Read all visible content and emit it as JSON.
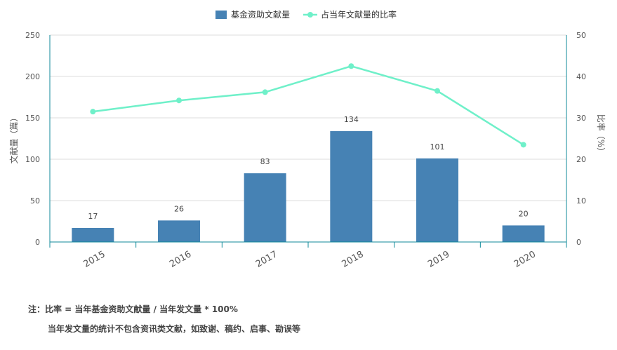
{
  "chart_data": {
    "type": "bar",
    "categories": [
      "2015",
      "2016",
      "2017",
      "2018",
      "2019",
      "2020"
    ],
    "series": [
      {
        "name": "基金资助文献量",
        "type": "bar",
        "axis": "left",
        "color": "#4682b4",
        "values": [
          17,
          26,
          83,
          134,
          101,
          20
        ]
      },
      {
        "name": "占当年文献量的比率",
        "type": "line",
        "axis": "right",
        "color": "#6ff0c9",
        "values": [
          31.5,
          34.2,
          36.2,
          42.5,
          36.5,
          23.5
        ]
      }
    ],
    "ylabel": "文献量（篇）",
    "y2label": "比率（%）",
    "ylim": [
      0,
      250
    ],
    "yticks": [
      "0",
      "50",
      "100",
      "150",
      "200",
      "250"
    ],
    "y2lim": [
      0,
      50
    ],
    "y2ticks": [
      "0",
      "10",
      "20",
      "30",
      "40",
      "50"
    ],
    "grid": true,
    "legend_position": "top-center",
    "axis_color": "#0f8a9a"
  },
  "notes": {
    "line1": "注：比率 = 当年基金资助文献量 / 当年发文量 * 100%",
    "line2": "当年发文量的统计不包含资讯类文献，如致谢、稿约、启事、勘误等"
  }
}
